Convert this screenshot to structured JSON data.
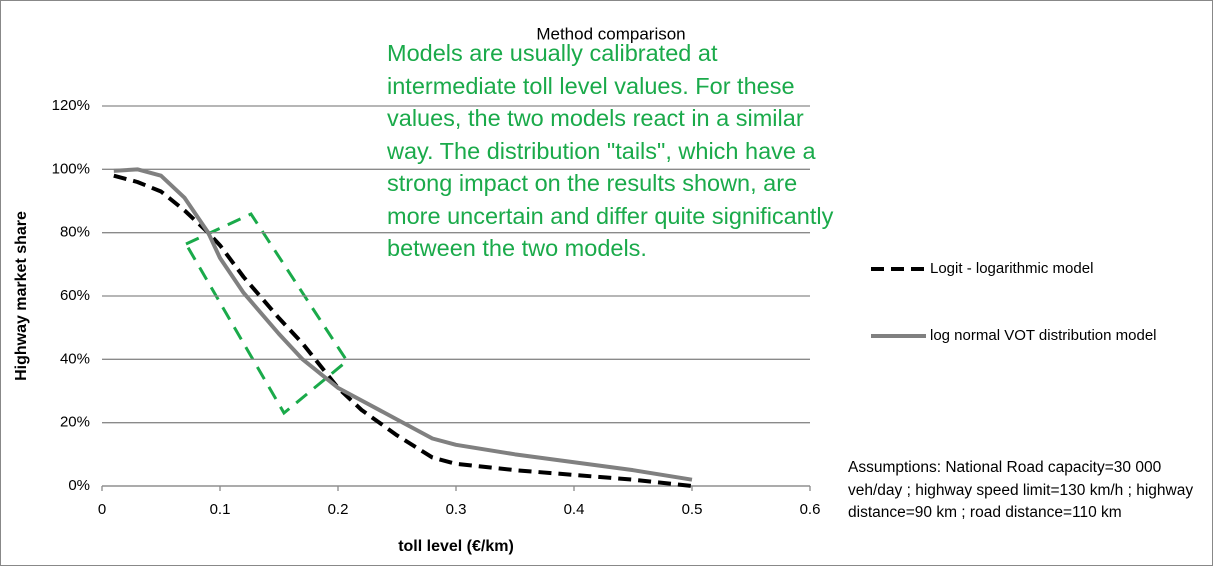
{
  "chart_data": {
    "type": "line",
    "title": "Method comparison",
    "x_label": "toll level (€/km)",
    "y_label": "Highway market share",
    "x": [
      0.01,
      0.03,
      0.05,
      0.07,
      0.09,
      0.1,
      0.12,
      0.15,
      0.17,
      0.2,
      0.22,
      0.25,
      0.28,
      0.3,
      0.35,
      0.4,
      0.45,
      0.5
    ],
    "series": [
      {
        "name": "Logit - logarithmic model",
        "color": "#000000",
        "dashed": true,
        "values": [
          98,
          96,
          93,
          87,
          80,
          76,
          66,
          53,
          45,
          31,
          24,
          16,
          9,
          7,
          5,
          3.5,
          2,
          0
        ]
      },
      {
        "name": "log normal VOT distribution model",
        "color": "#808080",
        "dashed": false,
        "values": [
          99.5,
          100,
          98,
          91,
          80,
          72,
          61,
          48,
          40,
          31,
          27,
          21,
          15,
          13,
          10,
          7.5,
          5,
          2
        ]
      }
    ],
    "xlim": [
      0,
      0.6
    ],
    "xticks": [
      0,
      0.1,
      0.2,
      0.3,
      0.4,
      0.5,
      0.6
    ],
    "ylim": [
      0,
      120
    ],
    "yticks": [
      {
        "value": 0,
        "label": "0%"
      },
      {
        "value": 20,
        "label": "20%"
      },
      {
        "value": 40,
        "label": "40%"
      },
      {
        "value": 60,
        "label": "60%"
      },
      {
        "value": 80,
        "label": "80%"
      },
      {
        "value": 100,
        "label": "100%"
      },
      {
        "value": 120,
        "label": "120%"
      }
    ],
    "grid": true,
    "legend": "right",
    "annotation": "Models are usually calibrated at intermediate toll level values. For these values, the two models react in a similar way. The distribution \"tails\", which have a strong impact on the results shown, are more uncertain and differ quite significantly between the two models.",
    "assumptions": "Assumptions: National Road capacity=30 000 veh/day ; highway speed limit=130 km/h ; highway distance=90 km ; road distance=110 km"
  }
}
